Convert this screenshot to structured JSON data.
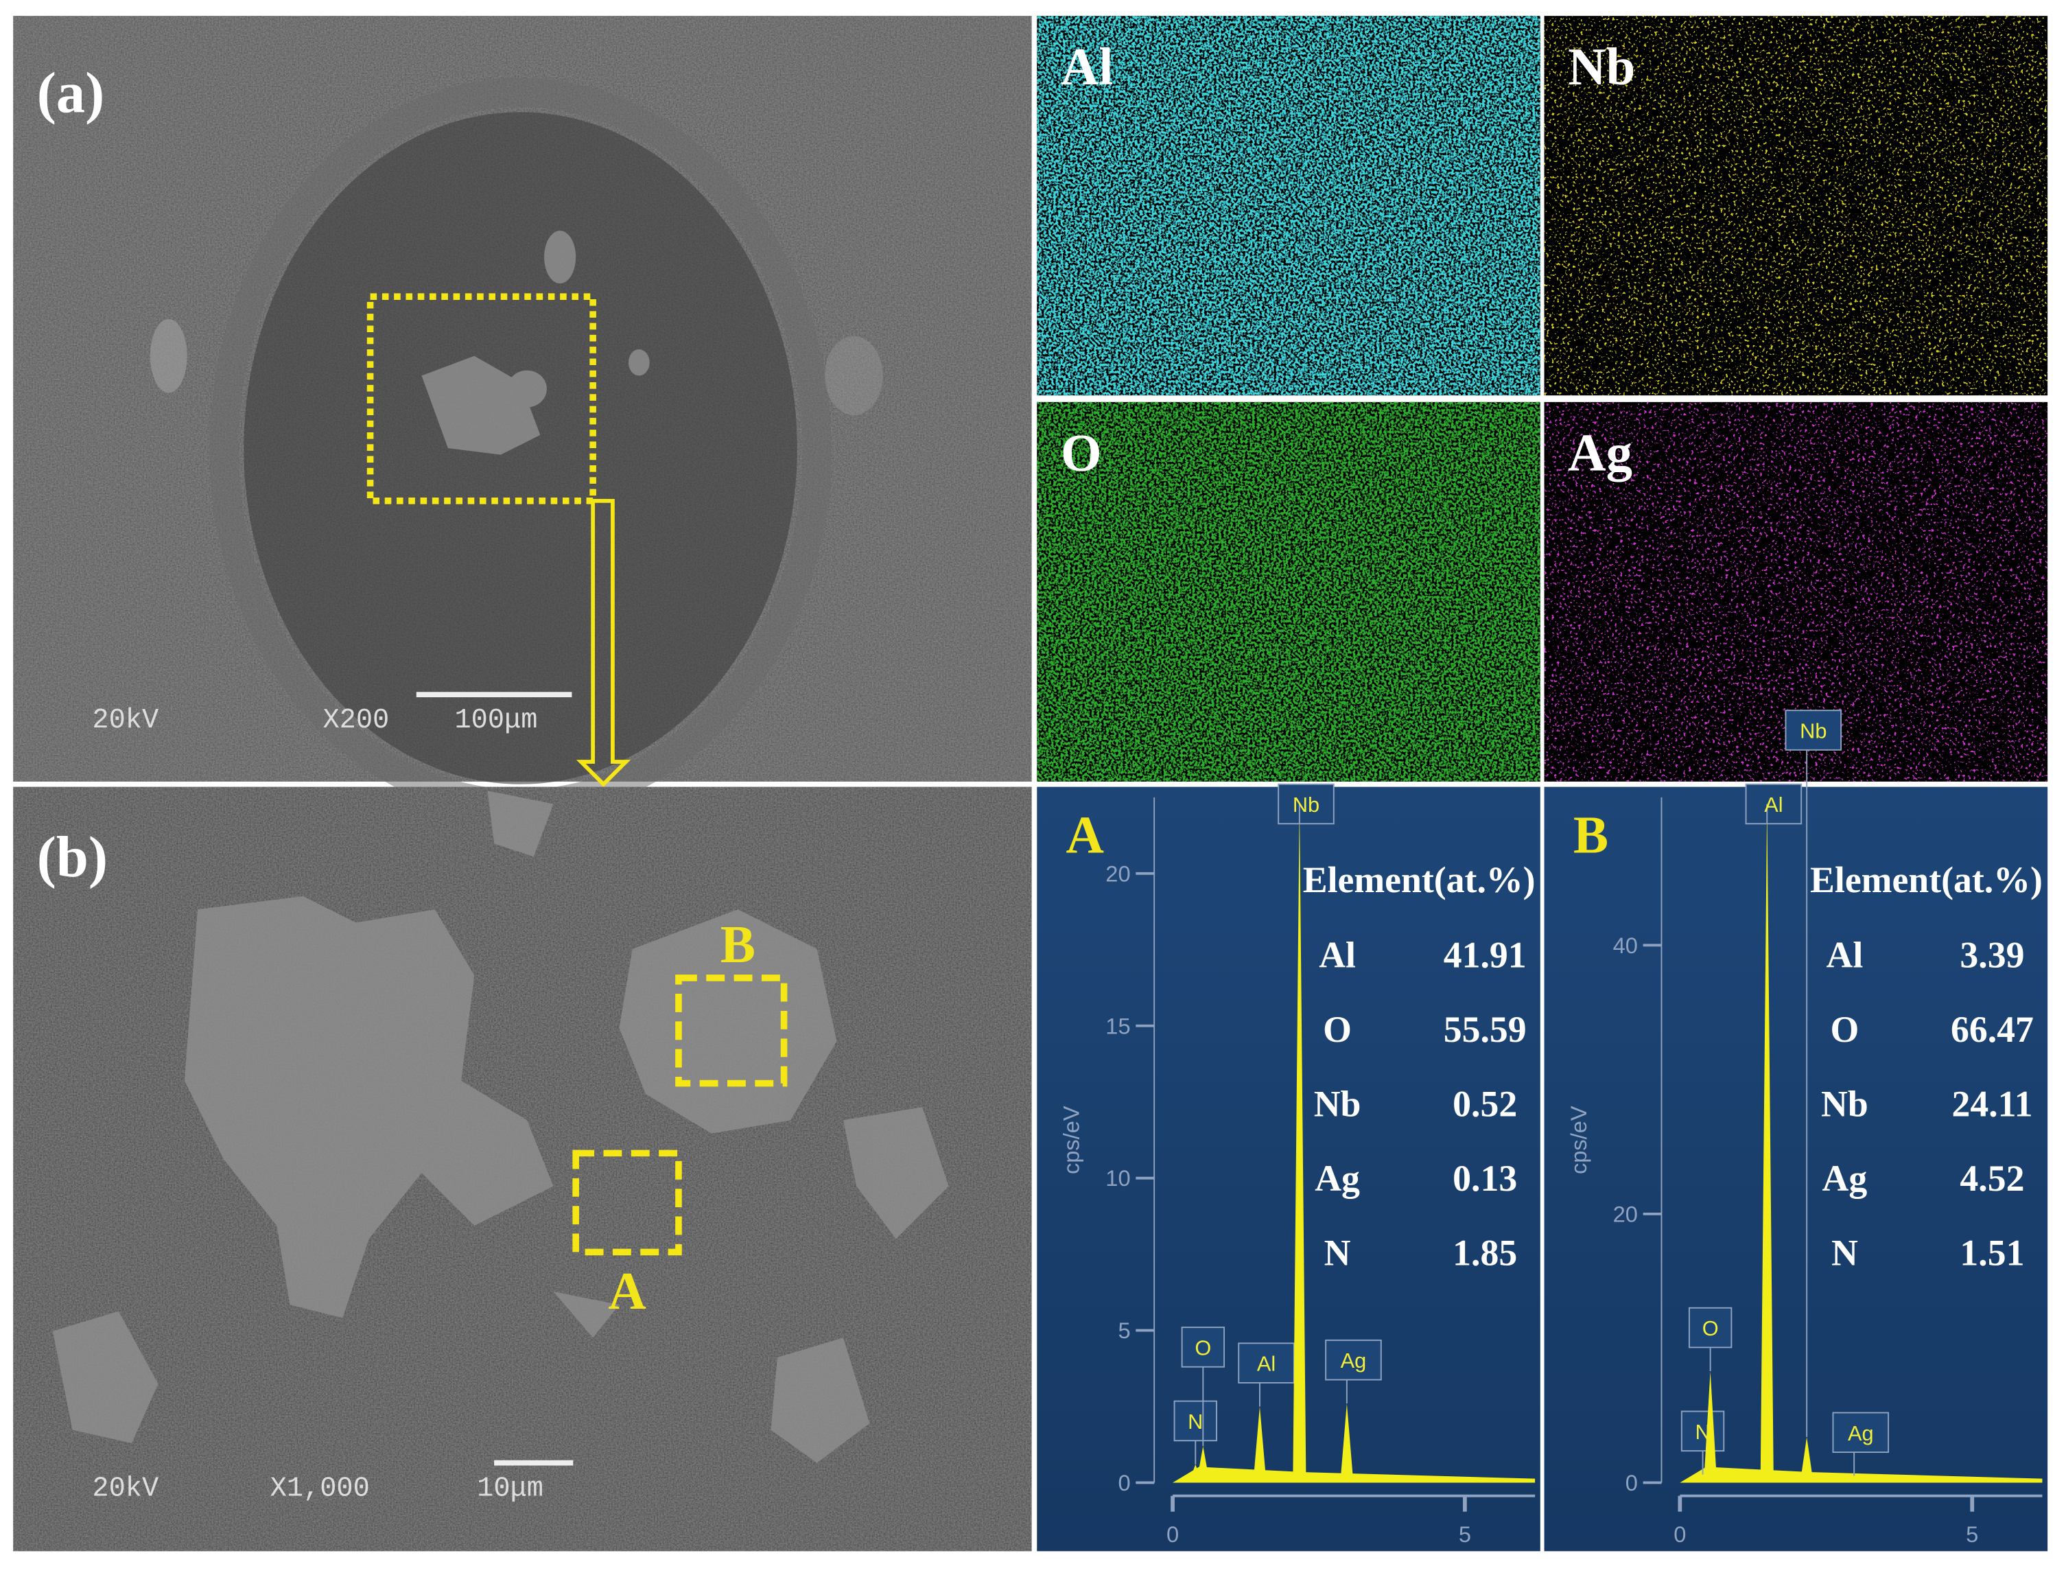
{
  "panel_a": {
    "label": "(a)",
    "voltage": "20kV",
    "magnification": "X200",
    "scale": "100μm"
  },
  "maps": [
    {
      "element": "Al",
      "color": "#3fd6de"
    },
    {
      "element": "Nb",
      "color": "#d6cc1e"
    },
    {
      "element": "O",
      "color": "#2fae2f"
    },
    {
      "element": "Ag",
      "color": "#d232d2"
    }
  ],
  "panel_b": {
    "label": "(b)",
    "voltage": "20kV",
    "magnification": "X1,000",
    "scale": "10μm",
    "regions": [
      "B",
      "A"
    ]
  },
  "spectra": [
    {
      "name": "A",
      "y_label": "cps/eV",
      "xlim": [
        0,
        6.2
      ],
      "ylim": [
        0,
        22.5
      ],
      "xticks": [
        0,
        5
      ],
      "yticks": [
        0,
        5,
        10,
        15,
        20
      ],
      "peaks": [
        {
          "label": "N",
          "x": 0.39,
          "y": 0.6
        },
        {
          "label": "O",
          "x": 0.52,
          "y": 1.2
        },
        {
          "label": "Al",
          "x": 1.49,
          "y": 2.5
        },
        {
          "label": "Nb",
          "x": 2.17,
          "y": 22.3
        },
        {
          "label": "Ag",
          "x": 2.98,
          "y": 2.6
        }
      ],
      "table": {
        "header": "Element(at.%)",
        "rows": [
          [
            "Al",
            "41.91"
          ],
          [
            "O",
            "55.59"
          ],
          [
            "Nb",
            "0.52"
          ],
          [
            "Ag",
            "0.13"
          ],
          [
            "N",
            "1.85"
          ]
        ]
      }
    },
    {
      "name": "B",
      "y_label": "cps/eV",
      "xlim": [
        0,
        6.2
      ],
      "ylim": [
        0,
        51
      ],
      "xticks": [
        0,
        5
      ],
      "yticks": [
        0,
        20,
        40
      ],
      "peaks": [
        {
          "label": "N",
          "x": 0.39,
          "y": 0.6
        },
        {
          "label": "O",
          "x": 0.52,
          "y": 8.3
        },
        {
          "label": "Al",
          "x": 1.49,
          "y": 50.5
        },
        {
          "label": "Nb",
          "x": 2.17,
          "y": 3.4
        },
        {
          "label": "Ag",
          "x": 2.98,
          "y": 0.5
        }
      ],
      "table": {
        "header": "Element(at.%)",
        "rows": [
          [
            "Al",
            "3.39"
          ],
          [
            "O",
            "66.47"
          ],
          [
            "Nb",
            "24.11"
          ],
          [
            "Ag",
            "4.52"
          ],
          [
            "N",
            "1.51"
          ]
        ]
      }
    }
  ]
}
